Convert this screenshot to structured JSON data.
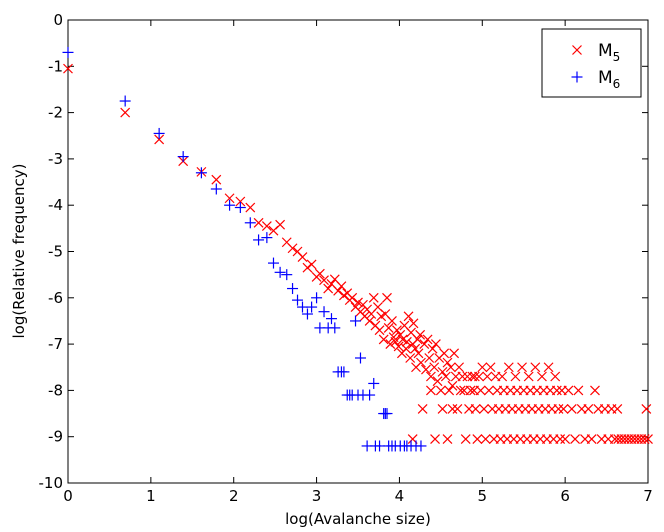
{
  "chart_data": {
    "type": "scatter",
    "title": "",
    "xlabel": "log(Avalanche size)",
    "ylabel": "log(Relative frequency)",
    "xlim": [
      0,
      7
    ],
    "ylim": [
      -10,
      0
    ],
    "xticks": [
      0,
      1,
      2,
      3,
      4,
      5,
      6,
      7
    ],
    "yticks": [
      0,
      -1,
      -2,
      -3,
      -4,
      -5,
      -6,
      -7,
      -8,
      -9,
      -10
    ],
    "xtick_labels": [
      "0",
      "1",
      "2",
      "3",
      "4",
      "5",
      "6",
      "7"
    ],
    "ytick_labels": [
      "0",
      "-1",
      "-2",
      "-3",
      "-4",
      "-5",
      "-6",
      "-7",
      "-8",
      "-9",
      "-10"
    ],
    "grid": false,
    "legend": {
      "position": "top-right",
      "entries": [
        {
          "name": "M",
          "subscript": "5",
          "marker": "x",
          "color": "#ff0000"
        },
        {
          "name": "M",
          "subscript": "6",
          "marker": "+",
          "color": "#0000ff"
        }
      ]
    },
    "series": [
      {
        "name": "M5",
        "marker": "x",
        "color": "#ff0000",
        "points": [
          [
            0.0,
            -1.05
          ],
          [
            0.69,
            -2.0
          ],
          [
            1.1,
            -2.58
          ],
          [
            1.39,
            -3.05
          ],
          [
            1.61,
            -3.28
          ],
          [
            1.79,
            -3.45
          ],
          [
            1.95,
            -3.85
          ],
          [
            2.08,
            -3.92
          ],
          [
            2.2,
            -4.05
          ],
          [
            2.3,
            -4.38
          ],
          [
            2.4,
            -4.45
          ],
          [
            2.48,
            -4.55
          ],
          [
            2.56,
            -4.42
          ],
          [
            2.64,
            -4.8
          ],
          [
            2.71,
            -4.93
          ],
          [
            2.77,
            -5.0
          ],
          [
            2.83,
            -5.12
          ],
          [
            2.89,
            -5.35
          ],
          [
            2.94,
            -5.28
          ],
          [
            3.0,
            -5.55
          ],
          [
            3.04,
            -5.48
          ],
          [
            3.09,
            -5.62
          ],
          [
            3.14,
            -5.8
          ],
          [
            3.18,
            -5.7
          ],
          [
            3.22,
            -5.6
          ],
          [
            3.26,
            -5.85
          ],
          [
            3.3,
            -5.75
          ],
          [
            3.33,
            -5.95
          ],
          [
            3.37,
            -5.9
          ],
          [
            3.4,
            -6.05
          ],
          [
            3.43,
            -6.0
          ],
          [
            3.47,
            -6.2
          ],
          [
            3.5,
            -6.1
          ],
          [
            3.53,
            -6.3
          ],
          [
            3.56,
            -6.15
          ],
          [
            3.58,
            -6.4
          ],
          [
            3.61,
            -6.25
          ],
          [
            3.64,
            -6.5
          ],
          [
            3.66,
            -6.35
          ],
          [
            3.69,
            -6.0
          ],
          [
            3.71,
            -6.6
          ],
          [
            3.74,
            -6.2
          ],
          [
            3.76,
            -6.7
          ],
          [
            3.78,
            -6.4
          ],
          [
            3.81,
            -6.9
          ],
          [
            3.83,
            -6.35
          ],
          [
            3.85,
            -6.0
          ],
          [
            3.87,
            -6.65
          ],
          [
            3.89,
            -7.0
          ],
          [
            3.91,
            -6.5
          ],
          [
            3.93,
            -6.85
          ],
          [
            3.95,
            -6.95
          ],
          [
            3.97,
            -6.7
          ],
          [
            3.99,
            -7.05
          ],
          [
            4.01,
            -6.8
          ],
          [
            4.03,
            -7.2
          ],
          [
            4.04,
            -6.9
          ],
          [
            4.06,
            -6.6
          ],
          [
            4.08,
            -7.1
          ],
          [
            4.09,
            -6.95
          ],
          [
            4.11,
            -6.4
          ],
          [
            4.13,
            -7.3
          ],
          [
            4.14,
            -6.75
          ],
          [
            4.16,
            -7.0
          ],
          [
            4.17,
            -6.55
          ],
          [
            4.19,
            -7.1
          ],
          [
            4.2,
            -7.5
          ],
          [
            4.22,
            -6.9
          ],
          [
            4.23,
            -7.2
          ],
          [
            4.25,
            -6.8
          ],
          [
            4.26,
            -7.4
          ],
          [
            4.28,
            -8.4
          ],
          [
            4.3,
            -7.0
          ],
          [
            4.32,
            -7.55
          ],
          [
            4.34,
            -6.9
          ],
          [
            4.36,
            -7.3
          ],
          [
            4.38,
            -7.7
          ],
          [
            4.4,
            -7.1
          ],
          [
            4.42,
            -7.5
          ],
          [
            4.44,
            -7.0
          ],
          [
            4.46,
            -7.8
          ],
          [
            4.48,
            -7.3
          ],
          [
            4.5,
            -8.0
          ],
          [
            4.52,
            -7.6
          ],
          [
            4.54,
            -7.2
          ],
          [
            4.56,
            -7.7
          ],
          [
            4.58,
            -7.4
          ],
          [
            4.6,
            -8.0
          ],
          [
            4.62,
            -7.5
          ],
          [
            4.64,
            -7.9
          ],
          [
            4.66,
            -7.2
          ],
          [
            4.68,
            -7.7
          ],
          [
            4.7,
            -8.4
          ],
          [
            4.72,
            -7.5
          ],
          [
            4.74,
            -8.0
          ],
          [
            4.76,
            -7.7
          ],
          [
            4.78,
            -8.0
          ],
          [
            4.8,
            -9.05
          ],
          [
            4.82,
            -7.7
          ],
          [
            4.84,
            -8.4
          ],
          [
            4.86,
            -8.0
          ],
          [
            4.88,
            -7.7
          ],
          [
            4.9,
            -8.0
          ],
          [
            4.92,
            -8.4
          ],
          [
            4.94,
            -9.05
          ],
          [
            4.96,
            -7.7
          ],
          [
            4.98,
            -8.0
          ],
          [
            5.0,
            -7.5
          ],
          [
            5.02,
            -8.4
          ],
          [
            5.04,
            -9.05
          ],
          [
            5.06,
            -7.7
          ],
          [
            5.08,
            -8.0
          ],
          [
            5.1,
            -7.5
          ],
          [
            5.12,
            -8.4
          ],
          [
            5.14,
            -9.05
          ],
          [
            5.16,
            -7.7
          ],
          [
            5.18,
            -8.0
          ],
          [
            5.2,
            -8.4
          ],
          [
            5.22,
            -9.05
          ],
          [
            5.24,
            -7.7
          ],
          [
            5.26,
            -8.0
          ],
          [
            5.28,
            -8.4
          ],
          [
            5.3,
            -9.05
          ],
          [
            5.32,
            -7.5
          ],
          [
            5.34,
            -8.0
          ],
          [
            5.36,
            -8.4
          ],
          [
            5.38,
            -9.05
          ],
          [
            5.4,
            -7.7
          ],
          [
            5.42,
            -8.0
          ],
          [
            5.44,
            -8.4
          ],
          [
            5.46,
            -9.05
          ],
          [
            5.48,
            -7.5
          ],
          [
            5.5,
            -8.0
          ],
          [
            5.52,
            -8.4
          ],
          [
            5.54,
            -9.05
          ],
          [
            5.56,
            -7.7
          ],
          [
            5.58,
            -8.0
          ],
          [
            5.6,
            -8.4
          ],
          [
            5.62,
            -9.05
          ],
          [
            5.64,
            -7.5
          ],
          [
            5.66,
            -8.0
          ],
          [
            5.68,
            -8.4
          ],
          [
            5.7,
            -9.05
          ],
          [
            5.72,
            -7.7
          ],
          [
            5.74,
            -8.0
          ],
          [
            5.76,
            -8.4
          ],
          [
            5.78,
            -9.05
          ],
          [
            5.8,
            -7.5
          ],
          [
            5.82,
            -8.0
          ],
          [
            5.84,
            -8.4
          ],
          [
            5.86,
            -9.05
          ],
          [
            5.88,
            -7.7
          ],
          [
            5.9,
            -8.0
          ],
          [
            5.92,
            -8.4
          ],
          [
            5.94,
            -9.05
          ],
          [
            5.96,
            -8.0
          ],
          [
            5.98,
            -8.4
          ],
          [
            6.0,
            -9.05
          ],
          [
            6.04,
            -8.0
          ],
          [
            6.08,
            -8.4
          ],
          [
            6.12,
            -9.05
          ],
          [
            6.16,
            -8.0
          ],
          [
            6.2,
            -8.4
          ],
          [
            6.24,
            -9.05
          ],
          [
            6.28,
            -8.4
          ],
          [
            6.32,
            -9.05
          ],
          [
            6.36,
            -8.0
          ],
          [
            6.4,
            -8.4
          ],
          [
            6.44,
            -9.05
          ],
          [
            6.48,
            -8.4
          ],
          [
            6.52,
            -9.05
          ],
          [
            6.56,
            -8.4
          ],
          [
            6.6,
            -9.05
          ],
          [
            6.64,
            -9.05
          ],
          [
            6.68,
            -9.05
          ],
          [
            6.72,
            -9.05
          ],
          [
            6.76,
            -9.05
          ],
          [
            6.8,
            -9.05
          ],
          [
            6.84,
            -9.05
          ],
          [
            6.88,
            -9.05
          ],
          [
            6.92,
            -9.05
          ],
          [
            6.96,
            -9.05
          ],
          [
            7.0,
            -9.05
          ],
          [
            6.63,
            -8.4
          ],
          [
            6.98,
            -8.4
          ],
          [
            4.38,
            -8.0
          ],
          [
            4.52,
            -8.4
          ],
          [
            4.16,
            -9.05
          ],
          [
            4.43,
            -9.05
          ],
          [
            4.58,
            -9.05
          ],
          [
            4.64,
            -8.4
          ],
          [
            4.91,
            -7.7
          ]
        ]
      },
      {
        "name": "M6",
        "marker": "+",
        "color": "#0000ff",
        "points": [
          [
            0.0,
            -0.7
          ],
          [
            0.69,
            -1.75
          ],
          [
            1.1,
            -2.45
          ],
          [
            1.39,
            -2.95
          ],
          [
            1.61,
            -3.3
          ],
          [
            1.79,
            -3.65
          ],
          [
            1.95,
            -4.0
          ],
          [
            2.08,
            -4.05
          ],
          [
            2.2,
            -4.38
          ],
          [
            2.3,
            -4.75
          ],
          [
            2.4,
            -4.7
          ],
          [
            2.48,
            -5.25
          ],
          [
            2.56,
            -5.45
          ],
          [
            2.64,
            -5.5
          ],
          [
            2.71,
            -5.8
          ],
          [
            2.77,
            -6.05
          ],
          [
            2.83,
            -6.2
          ],
          [
            2.89,
            -6.35
          ],
          [
            2.94,
            -6.2
          ],
          [
            3.0,
            -6.0
          ],
          [
            3.04,
            -6.65
          ],
          [
            3.09,
            -6.3
          ],
          [
            3.14,
            -6.65
          ],
          [
            3.18,
            -6.45
          ],
          [
            3.22,
            -6.65
          ],
          [
            3.26,
            -7.6
          ],
          [
            3.3,
            -7.6
          ],
          [
            3.33,
            -7.6
          ],
          [
            3.37,
            -8.1
          ],
          [
            3.4,
            -8.1
          ],
          [
            3.43,
            -8.1
          ],
          [
            3.47,
            -6.5
          ],
          [
            3.5,
            -8.1
          ],
          [
            3.53,
            -7.3
          ],
          [
            3.56,
            -8.1
          ],
          [
            3.61,
            -9.2
          ],
          [
            3.64,
            -8.1
          ],
          [
            3.69,
            -7.85
          ],
          [
            3.71,
            -9.2
          ],
          [
            3.76,
            -9.2
          ],
          [
            3.81,
            -8.5
          ],
          [
            3.85,
            -8.5
          ],
          [
            3.87,
            -9.2
          ],
          [
            3.91,
            -9.2
          ],
          [
            3.95,
            -9.2
          ],
          [
            4.01,
            -9.2
          ],
          [
            4.06,
            -9.2
          ],
          [
            4.09,
            -9.2
          ],
          [
            4.14,
            -9.2
          ],
          [
            4.2,
            -9.2
          ],
          [
            4.26,
            -9.2
          ],
          [
            3.83,
            -8.5
          ]
        ]
      }
    ]
  }
}
